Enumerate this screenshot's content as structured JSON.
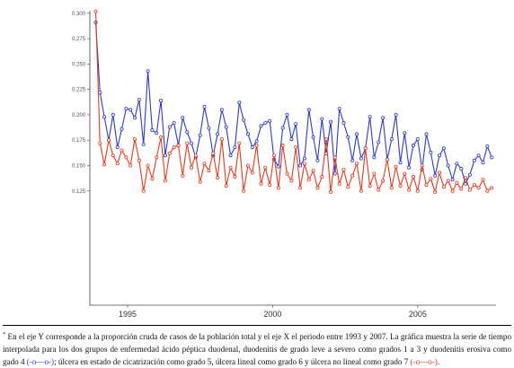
{
  "chart_data": {
    "type": "line",
    "title": "",
    "xlabel": "",
    "ylabel": "",
    "xlim": [
      1993.7,
      2007.7
    ],
    "ylim": [
      0.0125,
      0.3025
    ],
    "yticks": [
      {
        "value": 0.3,
        "label": "0.300"
      },
      {
        "value": 0.275,
        "label": "0.275"
      },
      {
        "value": 0.25,
        "label": "0.250"
      },
      {
        "value": 0.225,
        "label": "0.225"
      },
      {
        "value": 0.2,
        "label": "0.200"
      },
      {
        "value": 0.175,
        "label": "0.175"
      },
      {
        "value": 0.15,
        "label": "0.150"
      },
      {
        "value": 0.125,
        "label": "0.125"
      }
    ],
    "xticks": [
      {
        "value": 1995,
        "label": "1995"
      },
      {
        "value": 2000,
        "label": "2000"
      },
      {
        "value": 2005,
        "label": "2005"
      }
    ],
    "grid": false,
    "legend": "none",
    "series": [
      {
        "color": "#2b3bc4",
        "x": [
          1993.9,
          1994.05,
          1994.2,
          1994.35,
          1994.5,
          1994.65,
          1994.8,
          1994.95,
          1995.1,
          1995.25,
          1995.4,
          1995.55,
          1995.7,
          1995.85,
          1996.0,
          1996.15,
          1996.3,
          1996.45,
          1996.6,
          1996.75,
          1996.9,
          1997.05,
          1997.2,
          1997.35,
          1997.5,
          1997.65,
          1997.8,
          1997.95,
          1998.1,
          1998.25,
          1998.4,
          1998.55,
          1998.7,
          1998.85,
          1999.0,
          1999.15,
          1999.3,
          1999.45,
          1999.6,
          1999.75,
          1999.9,
          2000.05,
          2000.2,
          2000.35,
          2000.5,
          2000.65,
          2000.8,
          2000.95,
          2001.1,
          2001.25,
          2001.4,
          2001.55,
          2001.7,
          2001.85,
          2002.0,
          2002.15,
          2002.3,
          2002.45,
          2002.6,
          2002.75,
          2002.9,
          2003.05,
          2003.2,
          2003.35,
          2003.5,
          2003.65,
          2003.8,
          2003.95,
          2004.1,
          2004.25,
          2004.4,
          2004.55,
          2004.7,
          2004.85,
          2005.0,
          2005.15,
          2005.3,
          2005.45,
          2005.6,
          2005.75,
          2005.9,
          2006.05,
          2006.2,
          2006.35,
          2006.5,
          2006.65,
          2006.8,
          2006.95,
          2007.1,
          2007.25,
          2007.4,
          2007.55
        ],
        "values": [
          0.291,
          0.222,
          0.198,
          0.175,
          0.2,
          0.168,
          0.186,
          0.206,
          0.205,
          0.197,
          0.215,
          0.171,
          0.243,
          0.185,
          0.182,
          0.214,
          0.16,
          0.188,
          0.192,
          0.17,
          0.197,
          0.183,
          0.172,
          0.158,
          0.18,
          0.208,
          0.187,
          0.16,
          0.181,
          0.205,
          0.188,
          0.16,
          0.168,
          0.212,
          0.195,
          0.181,
          0.168,
          0.174,
          0.189,
          0.192,
          0.194,
          0.156,
          0.149,
          0.187,
          0.2,
          0.176,
          0.191,
          0.15,
          0.157,
          0.205,
          0.178,
          0.155,
          0.196,
          0.162,
          0.193,
          0.142,
          0.206,
          0.192,
          0.178,
          0.155,
          0.181,
          0.157,
          0.167,
          0.198,
          0.158,
          0.173,
          0.197,
          0.156,
          0.176,
          0.2,
          0.153,
          0.182,
          0.148,
          0.17,
          0.176,
          0.146,
          0.181,
          0.163,
          0.14,
          0.16,
          0.167,
          0.15,
          0.136,
          0.152,
          0.147,
          0.132,
          0.141,
          0.155,
          0.16,
          0.153,
          0.169,
          0.158
        ]
      },
      {
        "color": "#e03a1e",
        "x": [
          1993.9,
          1994.05,
          1994.2,
          1994.35,
          1994.5,
          1994.65,
          1994.8,
          1994.95,
          1995.1,
          1995.25,
          1995.4,
          1995.55,
          1995.7,
          1995.85,
          1996.0,
          1996.15,
          1996.3,
          1996.45,
          1996.6,
          1996.75,
          1996.9,
          1997.05,
          1997.2,
          1997.35,
          1997.5,
          1997.65,
          1997.8,
          1997.95,
          1998.1,
          1998.25,
          1998.4,
          1998.55,
          1998.7,
          1998.85,
          1999.0,
          1999.15,
          1999.3,
          1999.45,
          1999.6,
          1999.75,
          1999.9,
          2000.05,
          2000.2,
          2000.35,
          2000.5,
          2000.65,
          2000.8,
          2000.95,
          2001.1,
          2001.25,
          2001.4,
          2001.55,
          2001.7,
          2001.85,
          2002.0,
          2002.15,
          2002.3,
          2002.45,
          2002.6,
          2002.75,
          2002.9,
          2003.05,
          2003.2,
          2003.35,
          2003.5,
          2003.65,
          2003.8,
          2003.95,
          2004.1,
          2004.25,
          2004.4,
          2004.55,
          2004.7,
          2004.85,
          2005.0,
          2005.15,
          2005.3,
          2005.45,
          2005.6,
          2005.75,
          2005.9,
          2006.05,
          2006.2,
          2006.35,
          2006.5,
          2006.65,
          2006.8,
          2006.95,
          2007.1,
          2007.25,
          2007.4,
          2007.55
        ],
        "values": [
          0.302,
          0.172,
          0.151,
          0.175,
          0.16,
          0.152,
          0.165,
          0.158,
          0.15,
          0.176,
          0.155,
          0.125,
          0.15,
          0.137,
          0.158,
          0.178,
          0.135,
          0.162,
          0.168,
          0.17,
          0.14,
          0.172,
          0.148,
          0.16,
          0.134,
          0.152,
          0.145,
          0.162,
          0.138,
          0.176,
          0.13,
          0.148,
          0.139,
          0.172,
          0.125,
          0.15,
          0.143,
          0.17,
          0.132,
          0.148,
          0.131,
          0.16,
          0.128,
          0.17,
          0.142,
          0.135,
          0.168,
          0.128,
          0.152,
          0.136,
          0.145,
          0.128,
          0.139,
          0.176,
          0.124,
          0.158,
          0.132,
          0.146,
          0.129,
          0.14,
          0.152,
          0.125,
          0.167,
          0.13,
          0.142,
          0.126,
          0.135,
          0.156,
          0.128,
          0.149,
          0.13,
          0.142,
          0.126,
          0.139,
          0.125,
          0.15,
          0.131,
          0.137,
          0.124,
          0.143,
          0.129,
          0.135,
          0.125,
          0.133,
          0.127,
          0.138,
          0.126,
          0.131,
          0.128,
          0.136,
          0.125,
          0.128
        ]
      }
    ]
  },
  "caption": {
    "marker": "*",
    "text": " En el eje Y corresponde a la proporción cruda de casos de la población total y el eje X el periodo entre 1993 y 2007. La gráfica muestra la serie de tiempo interpolada para los dos grupos de enfermedad ácido péptica duodenal, duodenitis de grado leve a severo como grados 1 a 3 y duodenitis erosiva como gado 4 ",
    "legend_blue": "(-o—o-)",
    "text_mid": "; úlcera en estado de cicatrización como grado 5, úlcera lineal como grado 6 y úlcera no lineal como grado 7 ",
    "legend_red": "(-o—o-)",
    "text_end": "."
  }
}
